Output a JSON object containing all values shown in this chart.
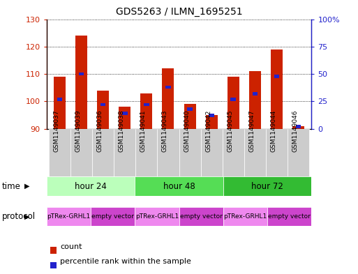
{
  "title": "GDS5263 / ILMN_1695251",
  "samples": [
    "GSM1149037",
    "GSM1149039",
    "GSM1149036",
    "GSM1149038",
    "GSM1149041",
    "GSM1149043",
    "GSM1149040",
    "GSM1149042",
    "GSM1149045",
    "GSM1149047",
    "GSM1149044",
    "GSM1149046"
  ],
  "counts": [
    109,
    124,
    104,
    98,
    103,
    112,
    99,
    95,
    109,
    111,
    119,
    91
  ],
  "percentiles": [
    27,
    50,
    22,
    14,
    22,
    38,
    18,
    12,
    27,
    32,
    48,
    2
  ],
  "ylim_left": [
    90,
    130
  ],
  "ylim_right": [
    0,
    100
  ],
  "yticks_left": [
    90,
    100,
    110,
    120,
    130
  ],
  "yticks_right": [
    0,
    25,
    50,
    75,
    100
  ],
  "bar_color": "#cc2200",
  "percentile_color": "#2222cc",
  "sample_bg": "#cccccc",
  "time_colors": {
    "hour 24": "#bbffbb",
    "hour 48": "#55dd55",
    "hour 72": "#33bb33"
  },
  "prot_colors": {
    "pTRex-GRHL1": "#ee88ee",
    "empty vector": "#cc44cc"
  },
  "time_groups": [
    {
      "label": "hour 24",
      "start": 0,
      "end": 3
    },
    {
      "label": "hour 48",
      "start": 4,
      "end": 7
    },
    {
      "label": "hour 72",
      "start": 8,
      "end": 11
    }
  ],
  "protocol_groups": [
    {
      "label": "pTRex-GRHL1",
      "start": 0,
      "end": 1
    },
    {
      "label": "empty vector",
      "start": 2,
      "end": 3
    },
    {
      "label": "pTRex-GRHL1",
      "start": 4,
      "end": 5
    },
    {
      "label": "empty vector",
      "start": 6,
      "end": 7
    },
    {
      "label": "pTRex-GRHL1",
      "start": 8,
      "end": 9
    },
    {
      "label": "empty vector",
      "start": 10,
      "end": 11
    }
  ]
}
